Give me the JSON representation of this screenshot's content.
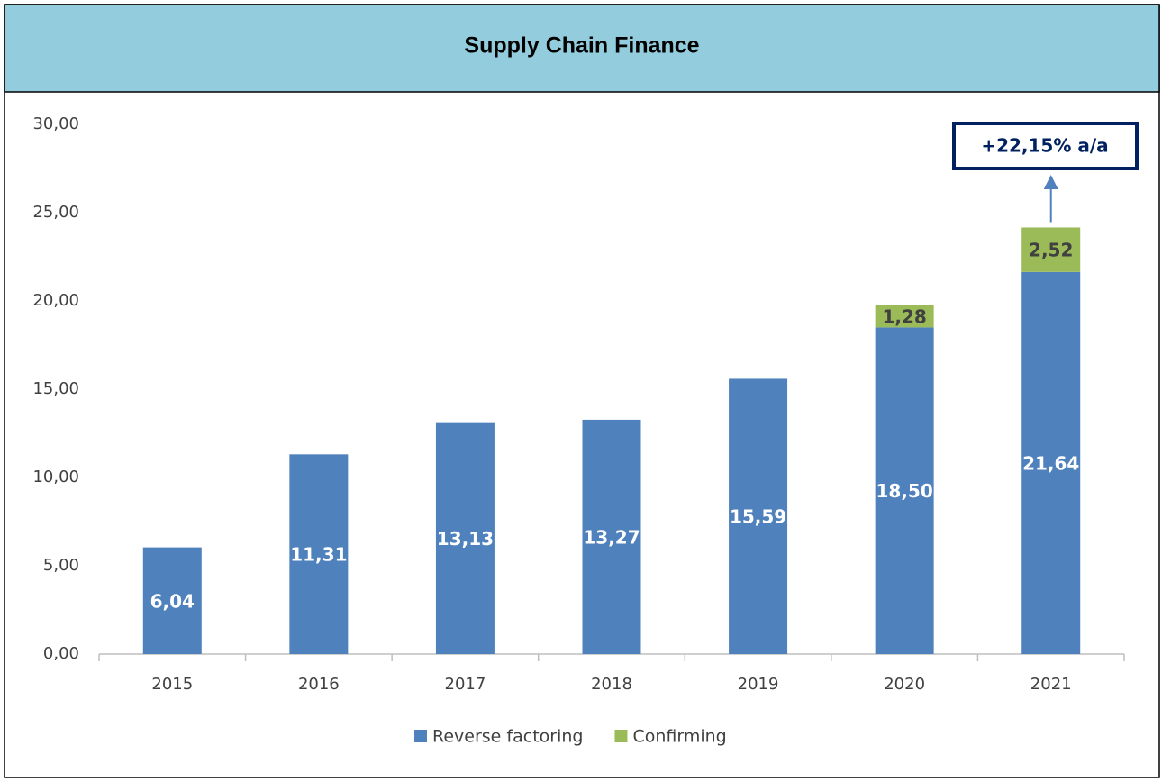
{
  "chart_data": {
    "type": "stacked_bar",
    "title": "Supply Chain Finance",
    "categories": [
      "2015",
      "2016",
      "2017",
      "2018",
      "2019",
      "2020",
      "2021"
    ],
    "series": [
      {
        "name": "Reverse factoring",
        "color": "#4f81bd",
        "values": [
          6.04,
          11.31,
          13.13,
          13.27,
          15.59,
          18.5,
          21.64
        ],
        "value_labels": [
          "6,04",
          "11,31",
          "13,13",
          "13,27",
          "15,59",
          "18,50",
          "21,64"
        ]
      },
      {
        "name": "Confirming",
        "color": "#9bbb59",
        "values": [
          null,
          null,
          null,
          null,
          null,
          1.28,
          2.52
        ],
        "value_labels": [
          null,
          null,
          null,
          null,
          null,
          "1,28",
          "2,52"
        ]
      }
    ],
    "ylim": [
      0,
      30
    ],
    "yticks": [
      {
        "value": 0,
        "label": "0,00"
      },
      {
        "value": 5,
        "label": "5,00"
      },
      {
        "value": 10,
        "label": "10,00"
      },
      {
        "value": 15,
        "label": "15,00"
      },
      {
        "value": 20,
        "label": "20,00"
      },
      {
        "value": 25,
        "label": "25,00"
      },
      {
        "value": 30,
        "label": "30,00"
      }
    ],
    "annotation": "+22,15% a/a",
    "legend": "bottom"
  }
}
